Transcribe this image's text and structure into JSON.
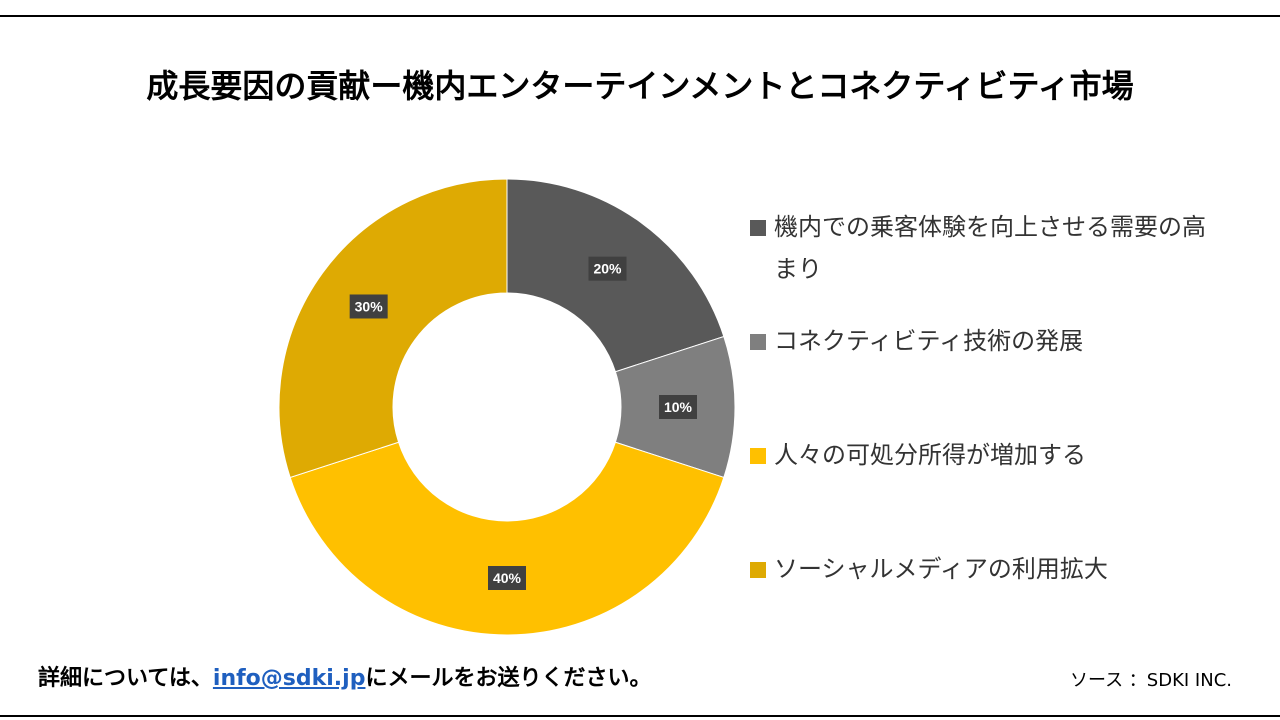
{
  "title": "成長要因の貢献ー機内エンターテインメントとコネクティビティ市場",
  "chart_data": {
    "type": "pie",
    "subtype": "donut",
    "title": "成長要因の貢献ー機内エンターテインメントとコネクティビティ市場",
    "legend_position": "right",
    "slices": [
      {
        "label": "機内での乗客体験を向上させる需要の高まり",
        "value": 20,
        "display": "20%",
        "color": "#595959"
      },
      {
        "label": "コネクティビティ技術の発展",
        "value": 10,
        "display": "10%",
        "color": "#7f7f7f"
      },
      {
        "label": "人々の可処分所得が増加する",
        "value": 40,
        "display": "40%",
        "color": "#ffc000"
      },
      {
        "label": "ソーシャルメディアの利用拡大",
        "value": 30,
        "display": "30%",
        "color": "#deaa03"
      }
    ]
  },
  "footer": {
    "contact_prefix": "詳細については、",
    "contact_email": "info@sdki.jp",
    "contact_suffix": "にメールをお送りください。",
    "source": "ソース ：SDKI INC."
  }
}
